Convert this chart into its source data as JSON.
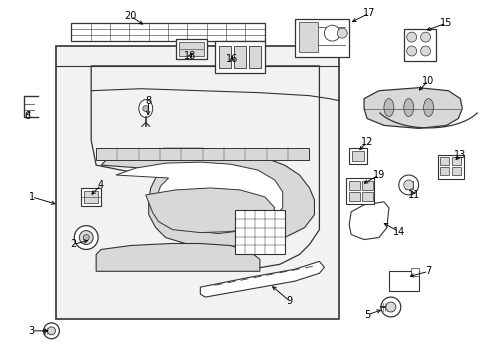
{
  "fig_width": 4.89,
  "fig_height": 3.6,
  "dpi": 100,
  "bg": "#f2f2f2",
  "lc": "#333333",
  "white": "#ffffff",
  "gray1": "#d8d8d8",
  "gray2": "#bbbbbb"
}
